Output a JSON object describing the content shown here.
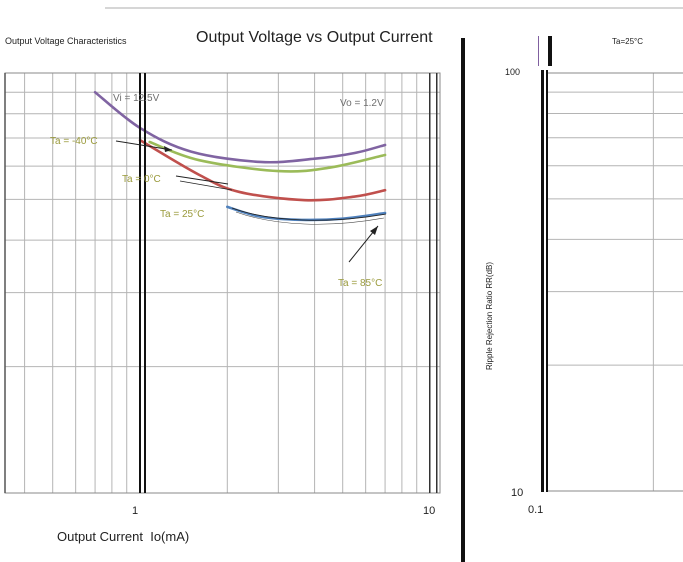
{
  "header": {
    "left_text": "Output Voltage Characteristics",
    "right_text": "Ta=25°C"
  },
  "chart_data": [
    {
      "type": "line",
      "title": "Output Voltage vs Output Current",
      "xlabel": "Output Current  Io(mA)",
      "ylabel": "",
      "xscale": "log",
      "yscale": "log",
      "xlim": [
        0.3,
        10
      ],
      "ylim": [
        10,
        100
      ],
      "xticks": [
        "1",
        "10"
      ],
      "grid": true,
      "series": [
        {
          "color": "#8064a2",
          "points": [
            [
              0.7,
              90
            ],
            [
              1,
              74
            ],
            [
              1.5,
              65
            ],
            [
              2.6,
              61.4
            ],
            [
              4,
              62.5
            ],
            [
              5.5,
              64.5
            ],
            [
              7,
              67.4
            ]
          ]
        },
        {
          "color": "#9bbb59",
          "points": [
            [
              1.08,
              68.5
            ],
            [
              1.6,
              62
            ],
            [
              3,
              58.4
            ],
            [
              4.5,
              59.5
            ],
            [
              7,
              63.8
            ]
          ]
        },
        {
          "color": "#c0504d",
          "points": [
            [
              1,
              69.2
            ],
            [
              1.6,
              57.2
            ],
            [
              2.2,
              52.1
            ],
            [
              3.7,
              49.8
            ],
            [
              5.5,
              50.8
            ],
            [
              7,
              52.6
            ]
          ]
        },
        {
          "color": "#4f81bd",
          "points": [
            [
              2,
              48
            ],
            [
              2.6,
              45.5
            ],
            [
              3.6,
              44.7
            ],
            [
              5,
              45
            ],
            [
              7,
              46.4
            ]
          ]
        }
      ],
      "annotations": [
        "Vi = 12.5V",
        "Ta = -40°C",
        "Ta = 0°C",
        "Ta = 25°C",
        "Ta = 85°C",
        "Vo = 1.2V"
      ]
    },
    {
      "type": "line",
      "title": "",
      "xlabel": "",
      "ylabel": "Ripple Rejection Ratio RR(dB)",
      "xscale": "log",
      "yscale": "log",
      "ylim": [
        10,
        100
      ],
      "yticks": [
        "100",
        "10"
      ],
      "xticks": [
        "0.1"
      ],
      "grid": true,
      "series": []
    }
  ]
}
